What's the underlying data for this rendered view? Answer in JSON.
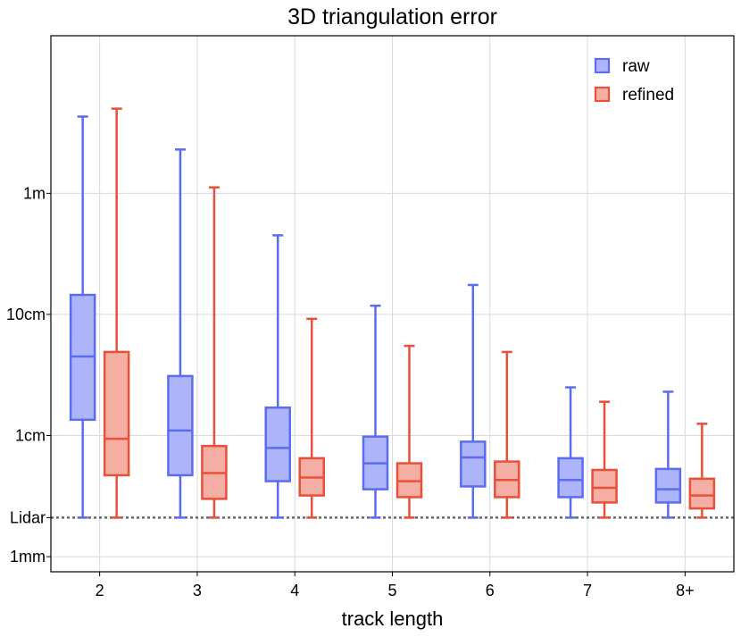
{
  "chart_data": {
    "type": "box",
    "title": "3D triangulation error",
    "xlabel": "track length",
    "ylabel": "",
    "y_scale": "log",
    "y_unit": "m",
    "ylim": [
      0.00075,
      20
    ],
    "categories": [
      "2",
      "3",
      "4",
      "5",
      "6",
      "7",
      "8+"
    ],
    "y_ticks": [
      {
        "value": 1,
        "label": "1m"
      },
      {
        "value": 0.1,
        "label": "10cm"
      },
      {
        "value": 0.01,
        "label": "1cm"
      },
      {
        "value": 0.001,
        "label": "1mm"
      }
    ],
    "reference_line": {
      "value": 0.0021,
      "label": "Lidar",
      "style": "dotted",
      "color": "#666666"
    },
    "grid": true,
    "legend": {
      "position": "top-right"
    },
    "series": [
      {
        "name": "raw",
        "color": "#5b6cf0",
        "fill": "#aeb4fa",
        "boxes": [
          {
            "whisker_low": 0.0021,
            "q1": 0.0135,
            "median": 0.045,
            "q3": 0.145,
            "whisker_high": 4.3
          },
          {
            "whisker_low": 0.0021,
            "q1": 0.0047,
            "median": 0.011,
            "q3": 0.031,
            "whisker_high": 2.3
          },
          {
            "whisker_low": 0.0021,
            "q1": 0.0042,
            "median": 0.0079,
            "q3": 0.017,
            "whisker_high": 0.45
          },
          {
            "whisker_low": 0.0021,
            "q1": 0.0036,
            "median": 0.0059,
            "q3": 0.0098,
            "whisker_high": 0.118
          },
          {
            "whisker_low": 0.0021,
            "q1": 0.0038,
            "median": 0.0066,
            "q3": 0.0089,
            "whisker_high": 0.175
          },
          {
            "whisker_low": 0.0021,
            "q1": 0.0031,
            "median": 0.0043,
            "q3": 0.0065,
            "whisker_high": 0.025
          },
          {
            "whisker_low": 0.0021,
            "q1": 0.0028,
            "median": 0.0036,
            "q3": 0.0053,
            "whisker_high": 0.023
          }
        ]
      },
      {
        "name": "refined",
        "color": "#e8503a",
        "fill": "#f5aea4",
        "boxes": [
          {
            "whisker_low": 0.0021,
            "q1": 0.0047,
            "median": 0.0094,
            "q3": 0.049,
            "whisker_high": 5.0
          },
          {
            "whisker_low": 0.0021,
            "q1": 0.003,
            "median": 0.0049,
            "q3": 0.0082,
            "whisker_high": 1.12
          },
          {
            "whisker_low": 0.0021,
            "q1": 0.0032,
            "median": 0.0045,
            "q3": 0.0065,
            "whisker_high": 0.092
          },
          {
            "whisker_low": 0.0021,
            "q1": 0.0031,
            "median": 0.0042,
            "q3": 0.0059,
            "whisker_high": 0.055
          },
          {
            "whisker_low": 0.0021,
            "q1": 0.0031,
            "median": 0.0043,
            "q3": 0.0061,
            "whisker_high": 0.049
          },
          {
            "whisker_low": 0.0021,
            "q1": 0.0028,
            "median": 0.0037,
            "q3": 0.0052,
            "whisker_high": 0.019
          },
          {
            "whisker_low": 0.0021,
            "q1": 0.0025,
            "median": 0.0032,
            "q3": 0.0044,
            "whisker_high": 0.0125
          }
        ]
      }
    ]
  }
}
